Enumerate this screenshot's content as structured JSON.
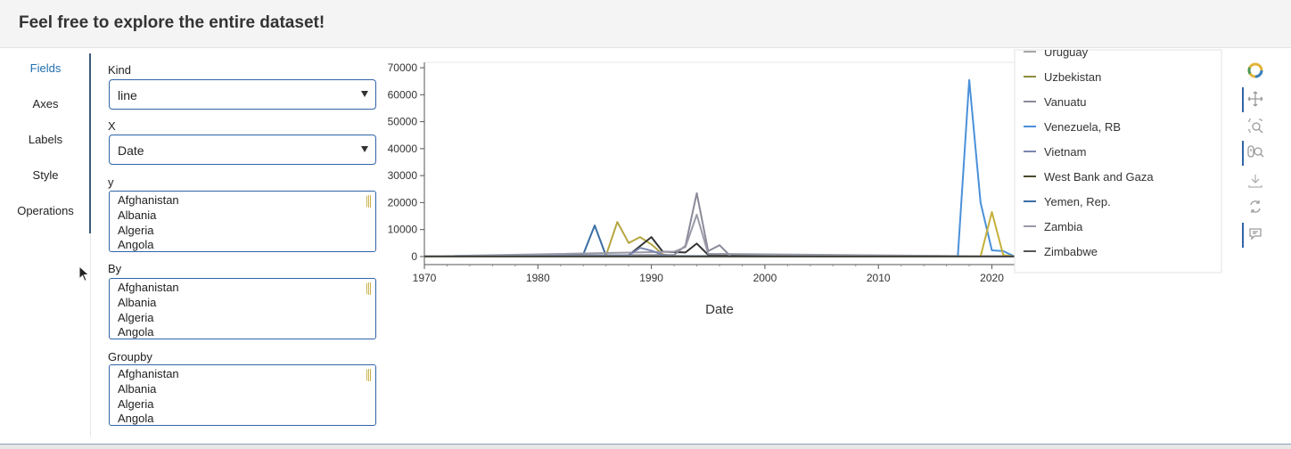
{
  "page": {
    "title": "Feel free to explore the entire dataset!"
  },
  "tabs": [
    {
      "label": "Fields",
      "active": true
    },
    {
      "label": "Axes",
      "active": false
    },
    {
      "label": "Labels",
      "active": false
    },
    {
      "label": "Style",
      "active": false
    },
    {
      "label": "Operations",
      "active": false
    }
  ],
  "fields": {
    "kind": {
      "label": "Kind",
      "value": "line"
    },
    "x": {
      "label": "X",
      "value": "Date"
    },
    "y": {
      "label": "y",
      "options": [
        "Afghanistan",
        "Albania",
        "Algeria",
        "Angola"
      ]
    },
    "by": {
      "label": "By",
      "options": [
        "Afghanistan",
        "Albania",
        "Algeria",
        "Angola"
      ]
    },
    "groupby": {
      "label": "Groupby",
      "options": [
        "Afghanistan",
        "Albania",
        "Algeria",
        "Angola"
      ]
    }
  },
  "chart_data": {
    "type": "line",
    "title": "",
    "xlabel": "Date",
    "ylabel": "",
    "xlim": [
      1970,
      2022
    ],
    "ylim": [
      -3000,
      72000
    ],
    "xticks": [
      "1970",
      "1980",
      "1990",
      "2000",
      "2010",
      "2020"
    ],
    "yticks": [
      "70000",
      "60000",
      "50000",
      "40000",
      "30000",
      "20000",
      "10000",
      "0"
    ],
    "grid": false,
    "legend_position": "right",
    "legend": [
      {
        "name": "Uruguay",
        "color": "#a6a6a6"
      },
      {
        "name": "Uzbekistan",
        "color": "#8c8c3c"
      },
      {
        "name": "Vanuatu",
        "color": "#8a8a9a"
      },
      {
        "name": "Venezuela, RB",
        "color": "#4a90d9"
      },
      {
        "name": "Vietnam",
        "color": "#7a86b0"
      },
      {
        "name": "West Bank and Gaza",
        "color": "#4a4a2a"
      },
      {
        "name": "Yemen, Rep.",
        "color": "#3a6ea5"
      },
      {
        "name": "Zambia",
        "color": "#9a9aa8"
      },
      {
        "name": "Zimbabwe",
        "color": "#555555"
      }
    ],
    "series": [
      {
        "color": "#3a6ea5",
        "x": [
          1970,
          1984,
          1985,
          1986,
          1990,
          1991,
          2022
        ],
        "y": [
          0,
          800,
          11500,
          300,
          0,
          200,
          0
        ]
      },
      {
        "color": "#b5a640",
        "x": [
          1970,
          1986,
          1987,
          1988,
          1989,
          1990,
          1991,
          1992,
          2022
        ],
        "y": [
          0,
          400,
          12800,
          5000,
          7200,
          4500,
          800,
          0,
          0
        ]
      },
      {
        "color": "#333333",
        "x": [
          1970,
          1988,
          1990,
          1991,
          1993,
          1994,
          1995,
          2022
        ],
        "y": [
          0,
          500,
          7200,
          1800,
          1500,
          4800,
          600,
          0
        ]
      },
      {
        "color": "#8a8a9a",
        "x": [
          1970,
          1992,
          1993,
          1994,
          1995,
          1996,
          1997,
          2022
        ],
        "y": [
          0,
          600,
          4000,
          23500,
          2000,
          4200,
          0,
          0
        ]
      },
      {
        "color": "#9a9aa8",
        "x": [
          1970,
          1992,
          1993,
          1994,
          1995,
          2022
        ],
        "y": [
          0,
          1800,
          3500,
          15500,
          1000,
          0
        ]
      },
      {
        "color": "#7a86b0",
        "x": [
          1970,
          1988,
          1989,
          1990,
          1991,
          1992,
          2022
        ],
        "y": [
          0,
          400,
          3200,
          2200,
          600,
          0,
          0
        ]
      },
      {
        "color": "#4a90d9",
        "x": [
          1970,
          2017,
          2018,
          2019,
          2020,
          2021,
          2022
        ],
        "y": [
          0,
          0,
          65500,
          20000,
          2300,
          2000,
          0
        ]
      },
      {
        "color": "#c4b03a",
        "x": [
          1970,
          2019,
          2020,
          2021,
          2022
        ],
        "y": [
          0,
          0,
          16500,
          500,
          0
        ]
      },
      {
        "color": "#444444",
        "x": [
          1970,
          2022
        ],
        "y": [
          0,
          0
        ]
      }
    ]
  },
  "toolbar": {
    "logo": "bokeh-logo-icon",
    "tools": [
      "pan-icon",
      "box-zoom-icon",
      "wheel-zoom-icon",
      "save-icon",
      "reset-icon",
      "hover-icon"
    ]
  }
}
